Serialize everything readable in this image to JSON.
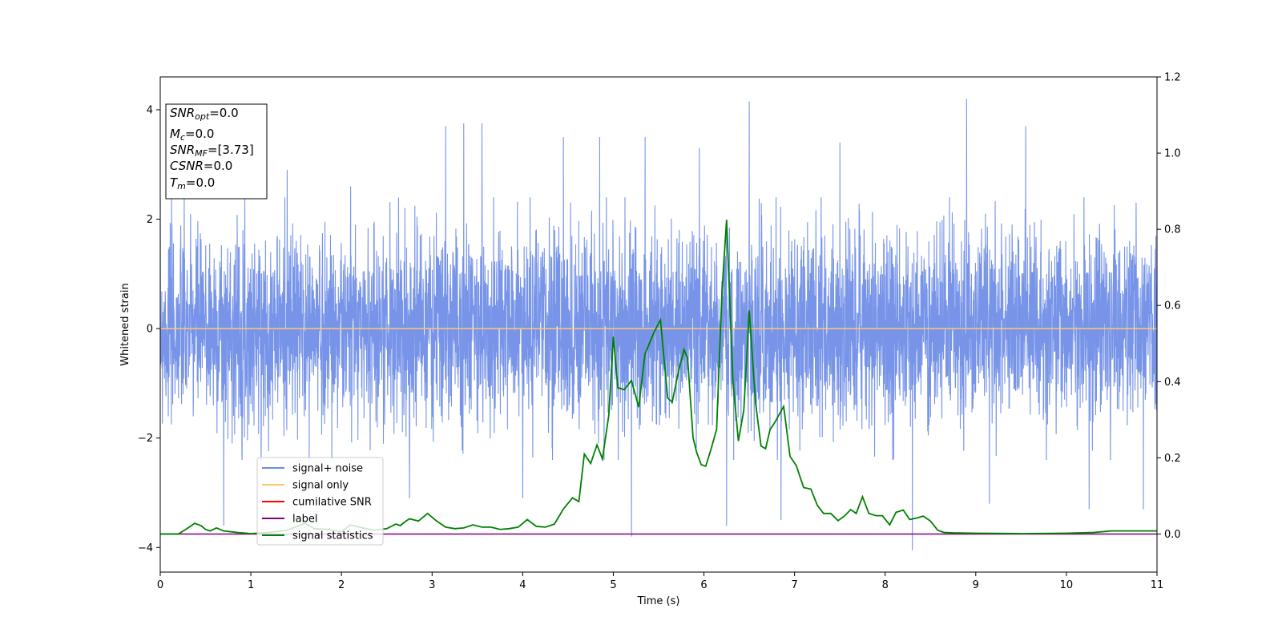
{
  "chart_data": {
    "type": "line",
    "xlabel": "Time (s)",
    "ylabel": "Whitened strain",
    "xlim": [
      0,
      11
    ],
    "ylim_left": [
      -4.45,
      4.6
    ],
    "ylim_right": [
      -0.1,
      1.2
    ],
    "x_ticks": [
      0,
      1,
      2,
      3,
      4,
      5,
      6,
      7,
      8,
      9,
      10,
      11
    ],
    "y_ticks_left": [
      -4,
      -2,
      0,
      2,
      4
    ],
    "y_ticks_right": [
      "0.0",
      "0.2",
      "0.4",
      "0.6",
      "0.8",
      "1.0",
      "1.2"
    ],
    "grid": false,
    "legend_position": "lower-left",
    "legend": [
      {
        "name": "signal+ noise",
        "color": "#6b8be6"
      },
      {
        "name": "signal only",
        "color": "#ffc870"
      },
      {
        "name": "cumilative SNR",
        "color": "#ff0000"
      },
      {
        "name": "label",
        "color": "#800080"
      },
      {
        "name": "signal statistics",
        "color": "#008000"
      }
    ],
    "annotation": {
      "lines": [
        {
          "base": "SNR",
          "sub": "opt",
          "value": "=0.0"
        },
        {
          "base": "M",
          "sub": "c",
          "value": "=0.0"
        },
        {
          "base": "SNR",
          "sub": "MF",
          "value": "=[3.73]"
        },
        {
          "base": "CSNR",
          "sub": "",
          "value": "=0.0"
        },
        {
          "base": "T",
          "sub": "m",
          "value": "=0.0"
        }
      ]
    },
    "series": [
      {
        "name": "signal+ noise",
        "axis": "left",
        "color": "#6b8be6",
        "style": "dense noise envelope",
        "typical_range": [
          -2.2,
          2.2
        ],
        "peaks": [
          [
            0.7,
            -3.6
          ],
          [
            1.4,
            2.9
          ],
          [
            2.1,
            2.6
          ],
          [
            2.75,
            -3.1
          ],
          [
            3.15,
            3.7
          ],
          [
            3.35,
            3.75
          ],
          [
            3.55,
            3.75
          ],
          [
            4.0,
            -3.1
          ],
          [
            4.45,
            3.5
          ],
          [
            4.85,
            3.5
          ],
          [
            5.2,
            -3.8
          ],
          [
            5.35,
            3.5
          ],
          [
            5.95,
            3.3
          ],
          [
            6.25,
            -3.6
          ],
          [
            6.5,
            4.15
          ],
          [
            6.85,
            -3.5
          ],
          [
            7.5,
            3.4
          ],
          [
            8.3,
            -4.05
          ],
          [
            8.9,
            4.2
          ],
          [
            9.15,
            -3.2
          ],
          [
            9.55,
            3.7
          ],
          [
            10.25,
            -3.3
          ],
          [
            10.85,
            -3.3
          ]
        ]
      },
      {
        "name": "signal only",
        "axis": "left",
        "color": "#ffc870",
        "x": [
          0,
          11
        ],
        "y": [
          0,
          0
        ]
      },
      {
        "name": "label",
        "axis": "right",
        "color": "#800080",
        "x": [
          0,
          11
        ],
        "y": [
          0,
          0
        ]
      },
      {
        "name": "signal statistics",
        "axis": "right",
        "color": "#008000",
        "x": [
          0,
          0.2,
          0.3,
          0.38,
          0.45,
          0.5,
          0.55,
          0.62,
          0.7,
          0.85,
          1.0,
          1.2,
          1.4,
          1.6,
          1.7,
          1.85,
          2.0,
          2.1,
          2.2,
          2.35,
          2.5,
          2.6,
          2.65,
          2.7,
          2.75,
          2.85,
          2.95,
          3.05,
          3.15,
          3.25,
          3.35,
          3.45,
          3.55,
          3.65,
          3.75,
          3.85,
          3.95,
          4.05,
          4.15,
          4.25,
          4.35,
          4.45,
          4.55,
          4.62,
          4.68,
          4.75,
          4.82,
          4.88,
          4.95,
          5.0,
          5.05,
          5.12,
          5.2,
          5.28,
          5.35,
          5.45,
          5.52,
          5.6,
          5.65,
          5.72,
          5.78,
          5.82,
          5.88,
          5.92,
          5.97,
          6.02,
          6.08,
          6.14,
          6.2,
          6.25,
          6.32,
          6.38,
          6.44,
          6.5,
          6.57,
          6.63,
          6.68,
          6.73,
          6.78,
          6.88,
          6.95,
          7.02,
          7.1,
          7.18,
          7.25,
          7.32,
          7.4,
          7.48,
          7.55,
          7.62,
          7.68,
          7.75,
          7.82,
          7.9,
          7.97,
          8.05,
          8.12,
          8.2,
          8.27,
          8.35,
          8.42,
          8.5,
          8.58,
          8.65,
          8.75,
          9.0,
          9.5,
          10.0,
          10.3,
          10.5,
          11.0
        ],
        "y": [
          0.0,
          0.0,
          0.015,
          0.028,
          0.022,
          0.012,
          0.008,
          0.016,
          0.008,
          0.004,
          0.001,
          0.004,
          0.01,
          0.028,
          0.014,
          0.012,
          0.006,
          0.024,
          0.018,
          0.01,
          0.014,
          0.026,
          0.022,
          0.032,
          0.04,
          0.034,
          0.054,
          0.034,
          0.018,
          0.014,
          0.016,
          0.024,
          0.018,
          0.018,
          0.012,
          0.014,
          0.018,
          0.038,
          0.02,
          0.018,
          0.026,
          0.066,
          0.095,
          0.085,
          0.21,
          0.185,
          0.234,
          0.197,
          0.312,
          0.518,
          0.384,
          0.379,
          0.403,
          0.333,
          0.473,
          0.53,
          0.562,
          0.357,
          0.346,
          0.428,
          0.484,
          0.461,
          0.253,
          0.214,
          0.182,
          0.178,
          0.224,
          0.275,
          0.64,
          0.825,
          0.402,
          0.244,
          0.325,
          0.587,
          0.344,
          0.231,
          0.224,
          0.274,
          0.292,
          0.335,
          0.204,
          0.179,
          0.122,
          0.118,
          0.076,
          0.054,
          0.054,
          0.035,
          0.047,
          0.064,
          0.054,
          0.098,
          0.054,
          0.048,
          0.048,
          0.024,
          0.057,
          0.063,
          0.038,
          0.042,
          0.047,
          0.034,
          0.01,
          0.004,
          0.003,
          0.002,
          0.001,
          0.002,
          0.004,
          0.008,
          0.008
        ]
      }
    ]
  }
}
